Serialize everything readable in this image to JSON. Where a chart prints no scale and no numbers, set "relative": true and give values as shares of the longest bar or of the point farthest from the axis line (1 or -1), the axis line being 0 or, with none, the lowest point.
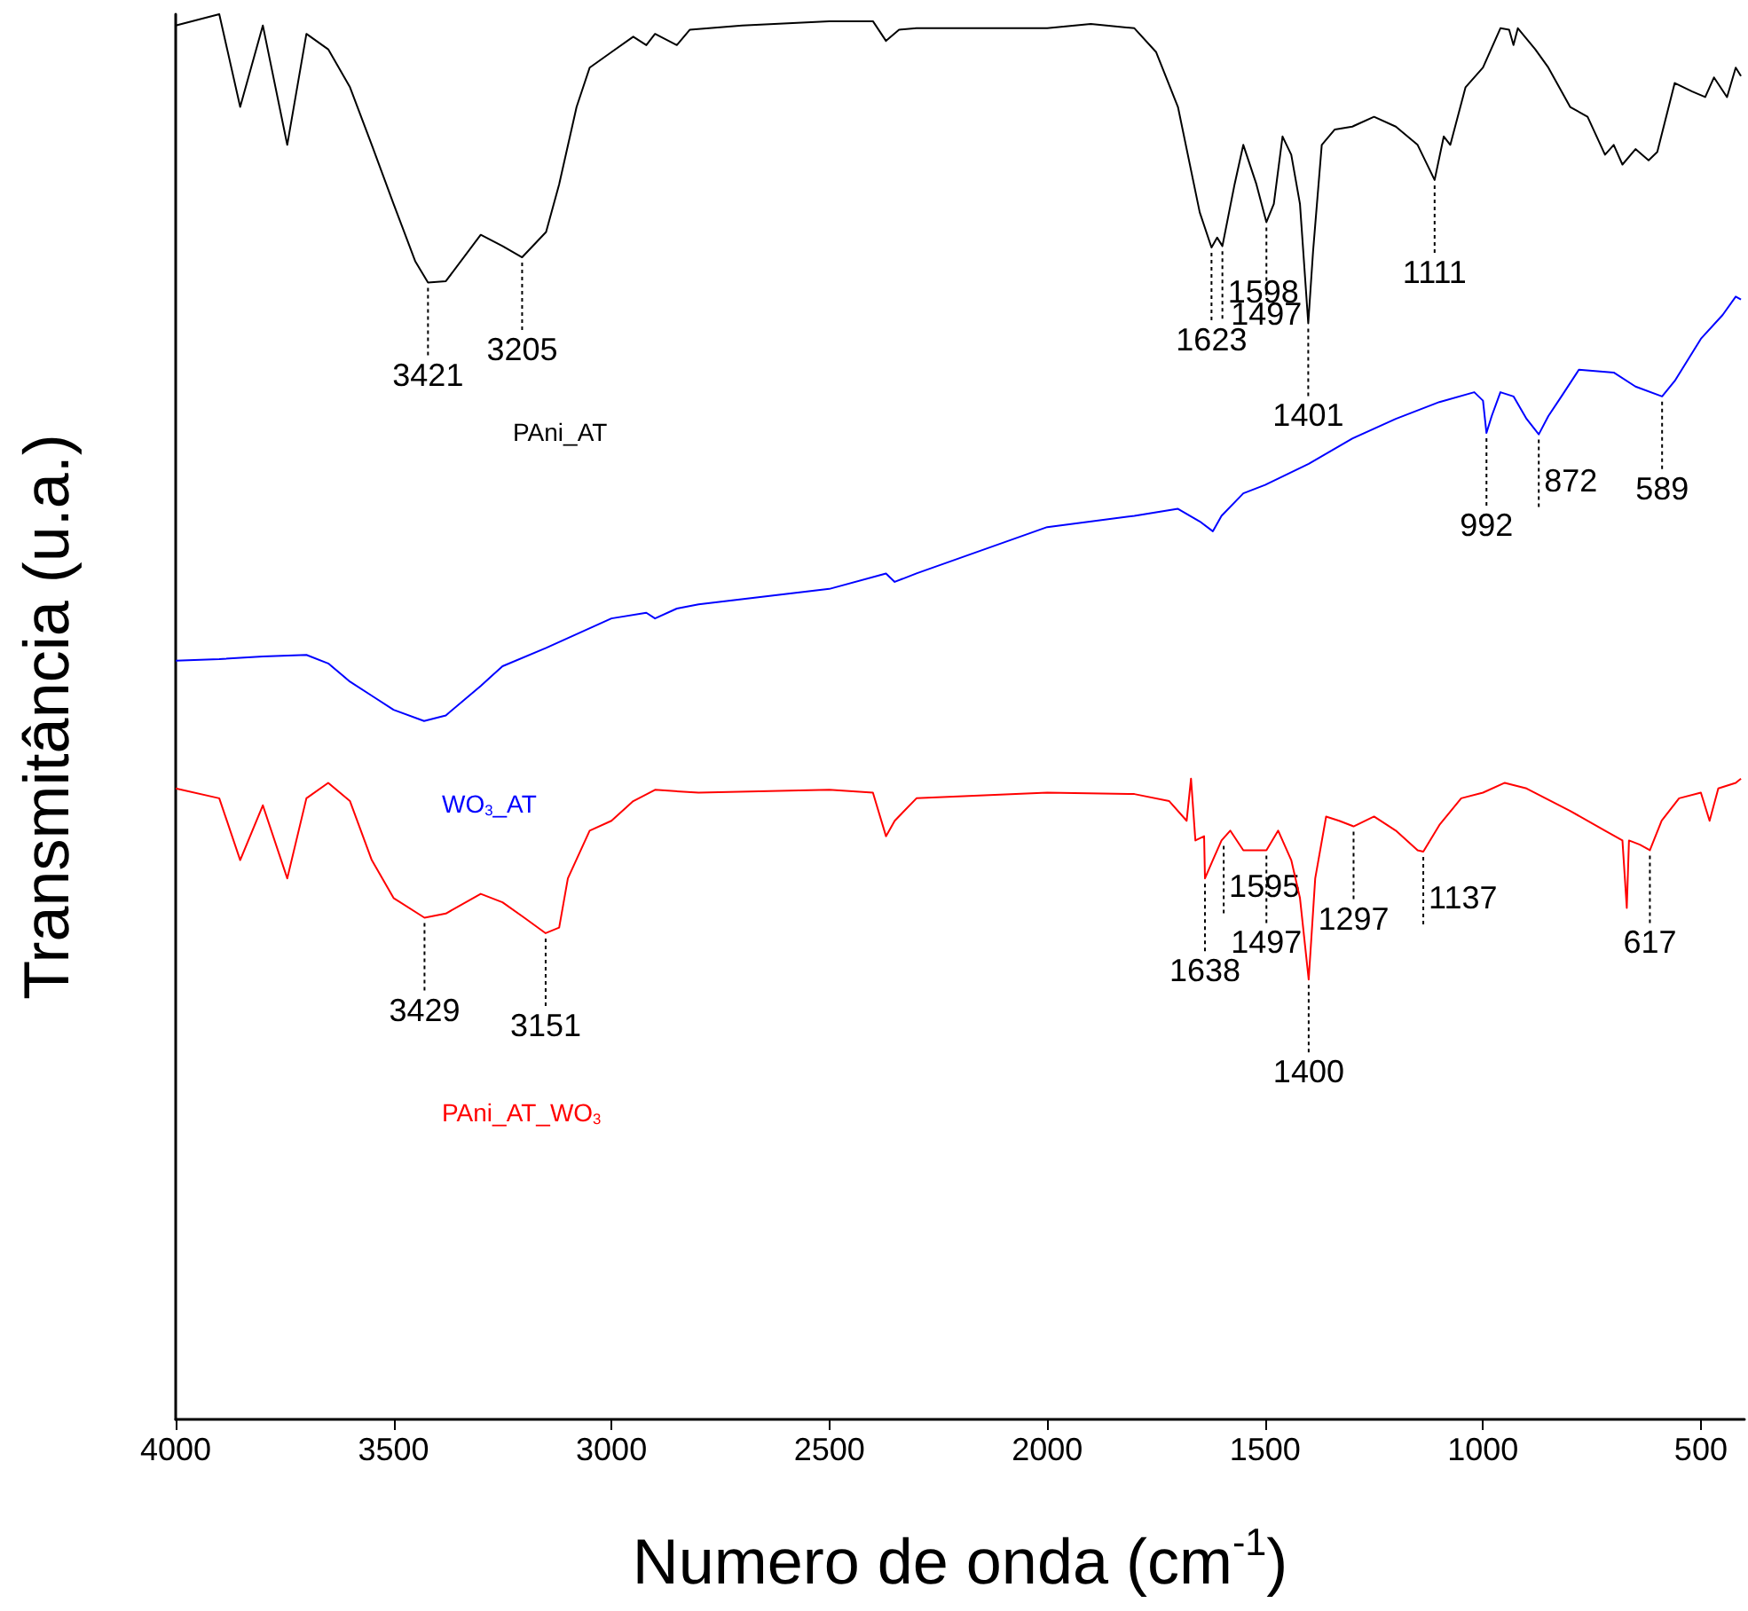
{
  "chart_data": {
    "type": "line",
    "relative": true,
    "xlabel": "Numero de onda (cm$^{-1}$)",
    "ylabel": "Transmitância (u.a.)",
    "xlim": [
      4000,
      400
    ],
    "xticks": [
      4000,
      3500,
      3000,
      2500,
      2000,
      1500,
      1000,
      500
    ],
    "grid": false,
    "legend": false,
    "marker": "none",
    "series": [
      {
        "name": "PAni_AT",
        "color": "#000000",
        "x": [
          4000,
          3900,
          3852,
          3800,
          3744,
          3700,
          3650,
          3600,
          3550,
          3500,
          3450,
          3421,
          3380,
          3300,
          3250,
          3205,
          3150,
          3120,
          3080,
          3050,
          3000,
          2950,
          2920,
          2900,
          2850,
          2820,
          2700,
          2500,
          2400,
          2370,
          2340,
          2300,
          2000,
          1900,
          1800,
          1750,
          1700,
          1650,
          1623,
          1610,
          1598,
          1570,
          1550,
          1520,
          1497,
          1480,
          1460,
          1440,
          1420,
          1401,
          1390,
          1370,
          1340,
          1300,
          1250,
          1200,
          1150,
          1111,
          1090,
          1075,
          1040,
          1000,
          960,
          940,
          930,
          920,
          880,
          850,
          800,
          760,
          720,
          700,
          680,
          650,
          620,
          600,
          560,
          520,
          490,
          470,
          440,
          420,
          408
        ],
        "values": [
          0.992,
          1,
          0.934,
          0.992,
          0.907,
          0.986,
          0.975,
          0.948,
          0.907,
          0.865,
          0.824,
          0.809,
          0.81,
          0.843,
          0.835,
          0.827,
          0.845,
          0.879,
          0.934,
          0.962,
          0.973,
          0.984,
          0.978,
          0.986,
          0.978,
          0.989,
          0.992,
          0.995,
          0.995,
          0.981,
          0.989,
          0.99,
          0.99,
          0.993,
          0.99,
          0.973,
          0.934,
          0.859,
          0.834,
          0.841,
          0.835,
          0.879,
          0.907,
          0.879,
          0.852,
          0.865,
          0.913,
          0.9,
          0.865,
          0.78,
          0.831,
          0.907,
          0.918,
          0.92,
          0.927,
          0.92,
          0.907,
          0.882,
          0.913,
          0.907,
          0.948,
          0.962,
          0.99,
          0.989,
          0.978,
          0.99,
          0.975,
          0.962,
          0.934,
          0.927,
          0.9,
          0.907,
          0.893,
          0.904,
          0.896,
          0.902,
          0.951,
          0.945,
          0.941,
          0.955,
          0.941,
          0.962,
          0.956
        ]
      },
      {
        "name": "WO$_{3}$_AT",
        "color": "#0000ff",
        "x": [
          4000,
          3900,
          3800,
          3700,
          3650,
          3600,
          3550,
          3500,
          3430,
          3380,
          3300,
          3250,
          3150,
          3000,
          2920,
          2900,
          2850,
          2800,
          2500,
          2370,
          2350,
          2300,
          2000,
          1800,
          1700,
          1650,
          1620,
          1600,
          1550,
          1500,
          1400,
          1300,
          1200,
          1100,
          1020,
          1000,
          992,
          980,
          960,
          930,
          900,
          872,
          850,
          820,
          780,
          700,
          650,
          589,
          560,
          500,
          450,
          420,
          408
        ],
        "values": [
          0.54,
          0.541,
          0.543,
          0.544,
          0.538,
          0.525,
          0.515,
          0.505,
          0.497,
          0.501,
          0.522,
          0.536,
          0.549,
          0.57,
          0.574,
          0.57,
          0.577,
          0.58,
          0.591,
          0.602,
          0.596,
          0.602,
          0.635,
          0.643,
          0.648,
          0.639,
          0.632,
          0.643,
          0.659,
          0.665,
          0.68,
          0.698,
          0.712,
          0.724,
          0.731,
          0.725,
          0.702,
          0.714,
          0.731,
          0.728,
          0.712,
          0.701,
          0.714,
          0.728,
          0.747,
          0.745,
          0.735,
          0.728,
          0.739,
          0.769,
          0.786,
          0.799,
          0.797
        ]
      },
      {
        "name": "PAni_AT_WO$_{3}$",
        "color": "#ff0000",
        "x": [
          4000,
          3900,
          3852,
          3800,
          3744,
          3700,
          3650,
          3600,
          3550,
          3500,
          3429,
          3380,
          3300,
          3250,
          3200,
          3151,
          3120,
          3100,
          3050,
          3000,
          2950,
          2900,
          2800,
          2500,
          2400,
          2370,
          2350,
          2300,
          2000,
          1800,
          1720,
          1680,
          1670,
          1660,
          1640,
          1638,
          1620,
          1600,
          1580,
          1550,
          1497,
          1470,
          1440,
          1420,
          1400,
          1385,
          1360,
          1330,
          1297,
          1250,
          1200,
          1150,
          1137,
          1100,
          1050,
          1000,
          950,
          900,
          800,
          720,
          680,
          670,
          665,
          640,
          617,
          590,
          550,
          500,
          480,
          460,
          420,
          408
        ],
        "values": [
          0.449,
          0.442,
          0.398,
          0.437,
          0.385,
          0.442,
          0.453,
          0.44,
          0.398,
          0.371,
          0.357,
          0.36,
          0.374,
          0.368,
          0.357,
          0.346,
          0.35,
          0.385,
          0.419,
          0.426,
          0.44,
          0.448,
          0.446,
          0.448,
          0.446,
          0.415,
          0.426,
          0.442,
          0.446,
          0.445,
          0.44,
          0.426,
          0.456,
          0.412,
          0.415,
          0.385,
          0.398,
          0.412,
          0.419,
          0.405,
          0.405,
          0.419,
          0.398,
          0.371,
          0.313,
          0.385,
          0.429,
          0.426,
          0.422,
          0.429,
          0.419,
          0.405,
          0.404,
          0.423,
          0.442,
          0.446,
          0.453,
          0.449,
          0.433,
          0.419,
          0.412,
          0.364,
          0.412,
          0.409,
          0.405,
          0.426,
          0.442,
          0.446,
          0.426,
          0.449,
          0.453,
          0.456
        ]
      }
    ],
    "annotations": [
      {
        "text": "3421",
        "x": 3421,
        "y": 0.809
      },
      {
        "text": "3205",
        "x": 3205,
        "y": 0.827
      },
      {
        "text": "1623",
        "x": 1623,
        "y": 0.834
      },
      {
        "text": "1598",
        "x": 1598,
        "y": 0.835
      },
      {
        "text": "1497",
        "x": 1497,
        "y": 0.852
      },
      {
        "text": "1401",
        "x": 1401,
        "y": 0.78
      },
      {
        "text": "1111",
        "x": 1111,
        "y": 0.882
      },
      {
        "text": "992",
        "x": 992,
        "y": 0.702
      },
      {
        "text": "872",
        "x": 872,
        "y": 0.701
      },
      {
        "text": "589",
        "x": 589,
        "y": 0.728
      },
      {
        "text": "3429",
        "x": 3429,
        "y": 0.357
      },
      {
        "text": "3151",
        "x": 3151,
        "y": 0.346
      },
      {
        "text": "1638",
        "x": 1638,
        "y": 0.385
      },
      {
        "text": "1595",
        "x": 1595,
        "y": 0.412
      },
      {
        "text": "1497",
        "x": 1497,
        "y": 0.405
      },
      {
        "text": "1400",
        "x": 1400,
        "y": 0.313
      },
      {
        "text": "1297",
        "x": 1297,
        "y": 0.422
      },
      {
        "text": "1137",
        "x": 1137,
        "y": 0.404
      },
      {
        "text": "617",
        "x": 617,
        "y": 0.405
      }
    ]
  }
}
